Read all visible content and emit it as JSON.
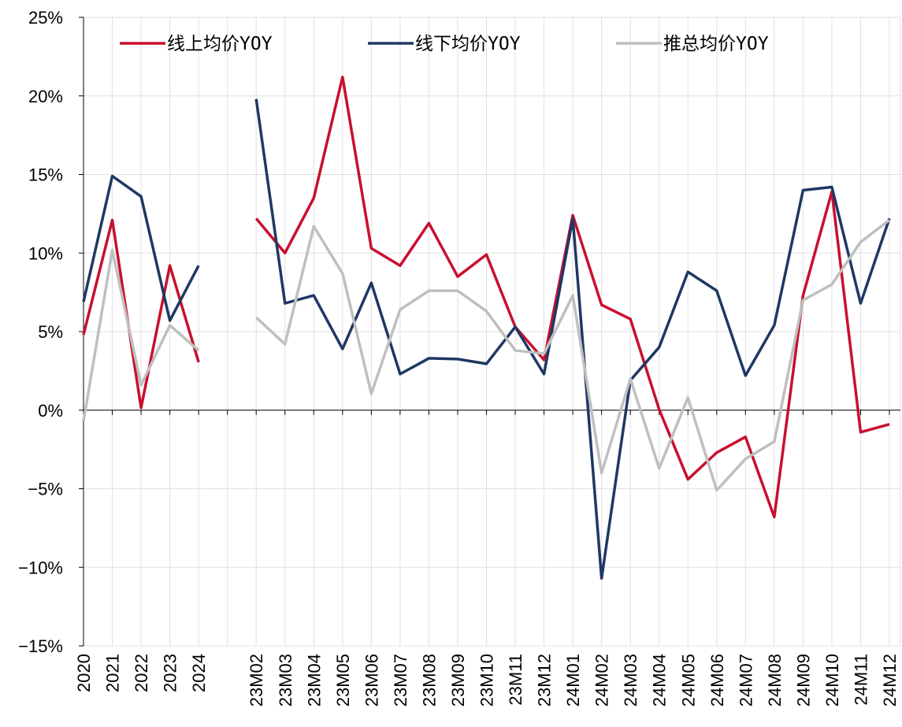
{
  "chart_data": {
    "type": "line",
    "categories": [
      "2020",
      "2021",
      "2022",
      "2023",
      "2024",
      null,
      "23M02",
      "23M03",
      "23M04",
      "23M05",
      "23M06",
      "23M07",
      "23M08",
      "23M09",
      "23M10",
      "23M11",
      "23M12",
      "24M01",
      "24M02",
      "24M03",
      "24M04",
      "24M05",
      "24M06",
      "24M07",
      "24M08",
      "24M09",
      "24M10",
      "24M11",
      "24M12"
    ],
    "series": [
      {
        "name": "线上均价YOY",
        "color": "#c8102e",
        "values": [
          4.8,
          12.1,
          0.15,
          9.2,
          3.05,
          null,
          12.2,
          10.0,
          13.5,
          21.2,
          10.3,
          9.2,
          11.9,
          8.5,
          9.9,
          5.3,
          3.2,
          12.4,
          6.7,
          5.8,
          0.05,
          -4.4,
          -2.7,
          -1.7,
          -6.8,
          7.3,
          13.9,
          -1.4,
          -0.9
        ]
      },
      {
        "name": "线下均价YOY",
        "color": "#1f3864",
        "values": [
          6.9,
          14.9,
          13.6,
          5.7,
          9.2,
          null,
          19.8,
          6.8,
          7.3,
          3.9,
          8.1,
          2.3,
          3.3,
          3.25,
          2.95,
          5.3,
          2.3,
          12.2,
          -10.7,
          1.9,
          4.0,
          8.8,
          7.6,
          2.2,
          5.4,
          14.0,
          14.2,
          6.8,
          12.2
        ]
      },
      {
        "name": "推总均价YOY",
        "color": "#bfbfbf",
        "values": [
          -0.7,
          10.2,
          1.6,
          5.4,
          3.8,
          null,
          5.9,
          4.2,
          11.7,
          8.7,
          1.05,
          6.4,
          7.6,
          7.6,
          6.3,
          3.8,
          3.6,
          7.3,
          -4.0,
          2.0,
          -3.7,
          0.8,
          -5.1,
          -3.1,
          -2.0,
          7.0,
          8.0,
          10.7,
          12.1
        ]
      }
    ],
    "ylim": [
      -15,
      25
    ],
    "yticks": [
      {
        "value": -15,
        "label": "−15%"
      },
      {
        "value": -10,
        "label": "−10%"
      },
      {
        "value": -5,
        "label": "−5%"
      },
      {
        "value": 0,
        "label": "0%"
      },
      {
        "value": 5,
        "label": "5%"
      },
      {
        "value": 10,
        "label": "10%"
      },
      {
        "value": 15,
        "label": "15%"
      },
      {
        "value": 20,
        "label": "20%"
      },
      {
        "value": 25,
        "label": "25%"
      }
    ],
    "grid": true,
    "legend": "top"
  }
}
